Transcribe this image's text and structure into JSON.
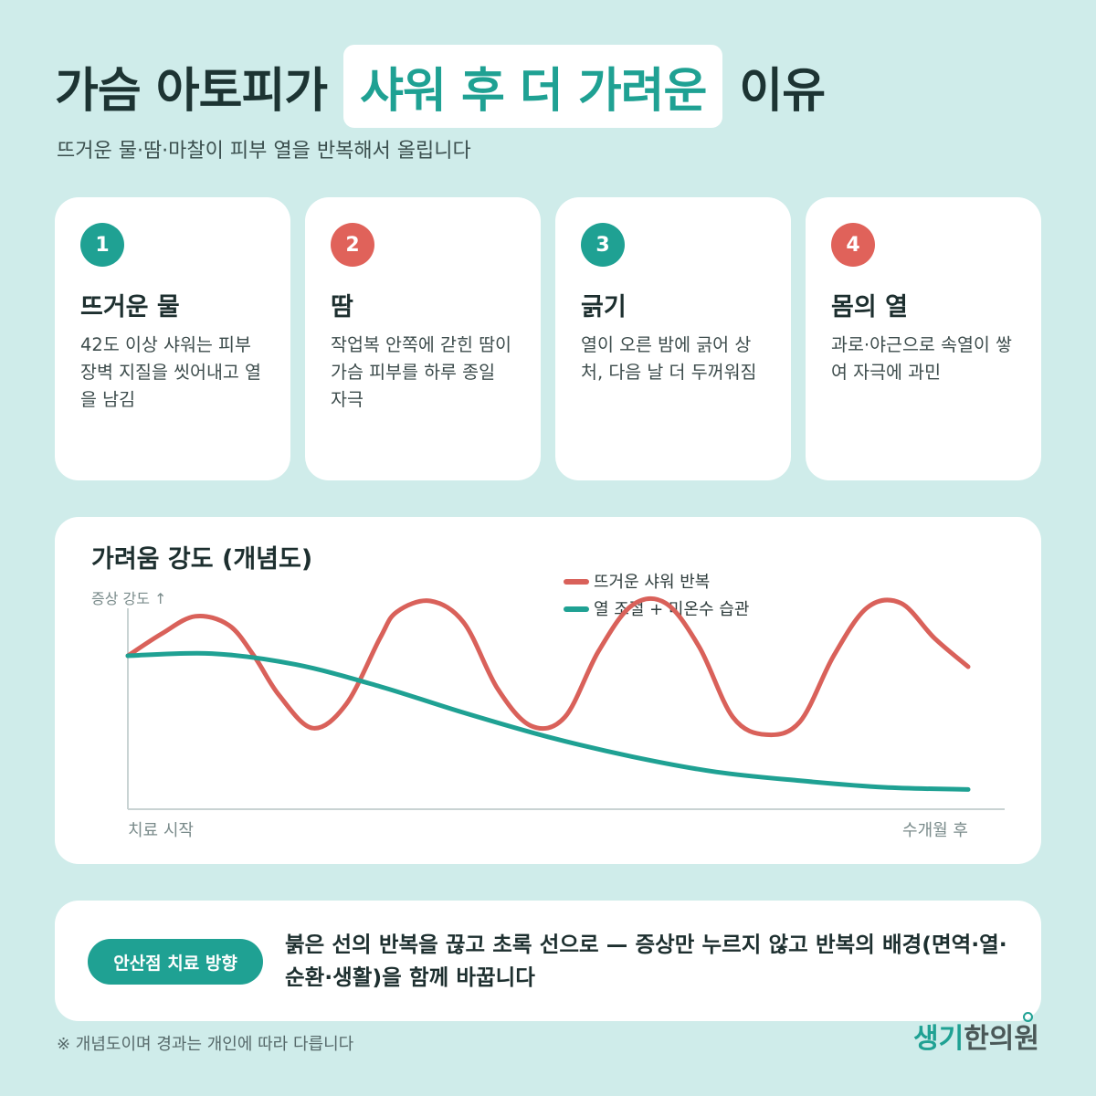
{
  "header": {
    "title_pre": "가슴 아토피가",
    "title_highlight": "샤워 후 더 가려운",
    "title_post": "이유",
    "subtitle": "뜨거운 물·땀·마찰이 피부 열을 반복해서 올립니다"
  },
  "cards": [
    {
      "number": "1",
      "color": "#1fa193",
      "title": "뜨거운 물",
      "desc": "42도 이상 샤워는 피부 장벽 지질을 씻어내고 열을 남김"
    },
    {
      "number": "2",
      "color": "#e0625a",
      "title": "땀",
      "desc": "작업복 안쪽에 갇힌 땀이 가슴 피부를 하루 종일 자극"
    },
    {
      "number": "3",
      "color": "#1fa193",
      "title": "긁기",
      "desc": "열이 오른 밤에 긁어 상처, 다음 날 더 두꺼워짐"
    },
    {
      "number": "4",
      "color": "#e0625a",
      "title": "몸의 열",
      "desc": "과로·야근으로 속열이 쌓여 자극에 과민"
    }
  ],
  "chart_data": {
    "type": "line",
    "title": "가려움 강도 (개념도)",
    "ylabel": "증상 강도 ↑",
    "x_start_label": "치료 시작",
    "x_end_label": "수개월 후",
    "x_range": [
      0,
      1
    ],
    "y_range": [
      0,
      1
    ],
    "legend_position": "top-center",
    "series": [
      {
        "name": "뜨거운 샤워 반복",
        "color": "#d9615a",
        "x": [
          0,
          0.04,
          0.08,
          0.12,
          0.15,
          0.18,
          0.22,
          0.26,
          0.3,
          0.32,
          0.36,
          0.4,
          0.44,
          0.48,
          0.52,
          0.56,
          0.6,
          0.64,
          0.68,
          0.72,
          0.76,
          0.8,
          0.84,
          0.88,
          0.92,
          0.96,
          1.0
        ],
        "y": [
          0.7,
          0.8,
          0.88,
          0.84,
          0.7,
          0.52,
          0.37,
          0.48,
          0.78,
          0.9,
          0.95,
          0.85,
          0.55,
          0.38,
          0.42,
          0.72,
          0.93,
          0.94,
          0.74,
          0.42,
          0.34,
          0.4,
          0.7,
          0.92,
          0.94,
          0.78,
          0.65
        ]
      },
      {
        "name": "열 조절 + 미온수 습관",
        "color": "#1fa193",
        "x": [
          0,
          0.1,
          0.2,
          0.3,
          0.4,
          0.5,
          0.6,
          0.7,
          0.8,
          0.9,
          1.0
        ],
        "y": [
          0.7,
          0.71,
          0.66,
          0.56,
          0.44,
          0.33,
          0.24,
          0.17,
          0.13,
          0.1,
          0.09
        ]
      }
    ]
  },
  "bottom": {
    "pill_label": "안산점 치료 방향",
    "text": "붉은 선의 반복을 끊고 초록 선으로 — 증상만 누르지 않고 반복의 배경(면역·열·순환·생활)을 함께 바꿉니다"
  },
  "footnote": "※ 개념도이며 경과는 개인에 따라 다릅니다",
  "logo": {
    "part1": "생기",
    "part2": "한의원"
  }
}
